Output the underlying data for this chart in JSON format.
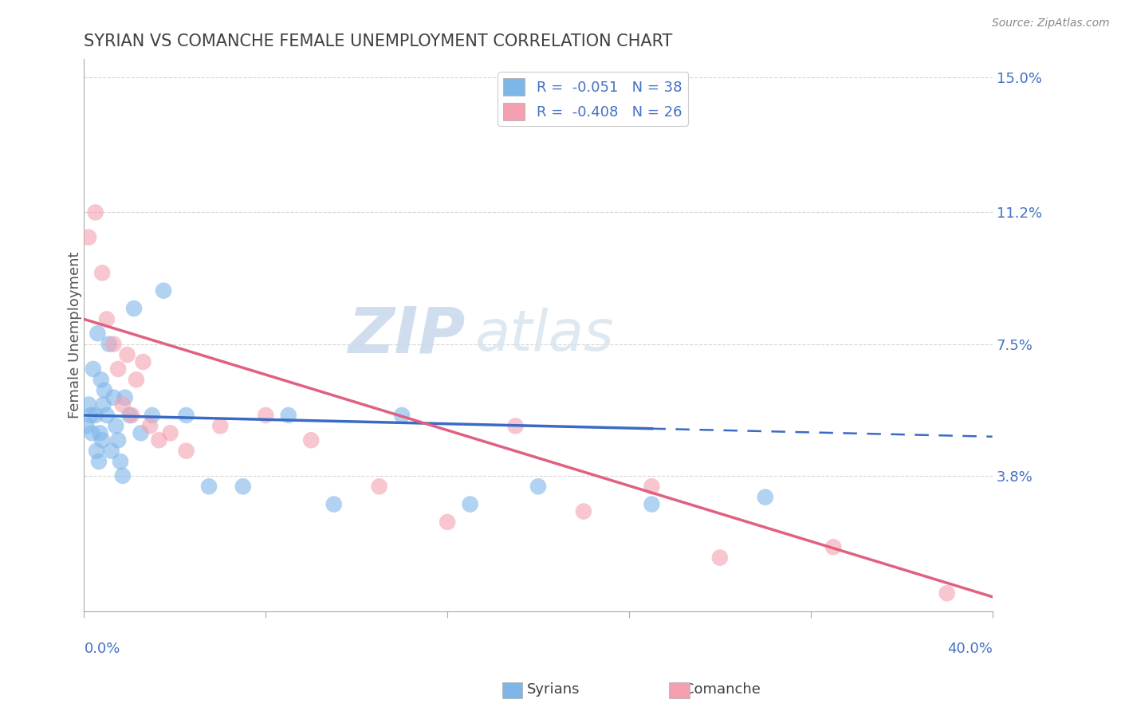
{
  "title": "SYRIAN VS COMANCHE FEMALE UNEMPLOYMENT CORRELATION CHART",
  "source": "Source: ZipAtlas.com",
  "ylabel": "Female Unemployment",
  "right_yticks": [
    3.8,
    7.5,
    11.2,
    15.0
  ],
  "right_ytick_labels": [
    "3.8%",
    "7.5%",
    "11.2%",
    "15.0%"
  ],
  "xlim": [
    0.0,
    40.0
  ],
  "ylim": [
    0.0,
    15.5
  ],
  "legend_label1": "R =  -0.051   N = 38",
  "legend_label2": "R =  -0.408   N = 26",
  "syrian_color": "#7EB6E8",
  "comanche_color": "#F4A0B0",
  "syrian_line_color": "#3A6BC4",
  "comanche_line_color": "#E06080",
  "background_color": "#FFFFFF",
  "grid_color": "#CCCCCC",
  "title_color": "#404040",
  "axis_label_color": "#4472C4",
  "watermark_color": "#D8E4F0",
  "syrians_x": [
    0.1,
    0.2,
    0.3,
    0.35,
    0.4,
    0.5,
    0.55,
    0.6,
    0.65,
    0.7,
    0.75,
    0.8,
    0.85,
    0.9,
    1.0,
    1.1,
    1.2,
    1.3,
    1.4,
    1.5,
    1.6,
    1.7,
    1.8,
    2.0,
    2.2,
    2.5,
    3.0,
    3.5,
    4.5,
    5.5,
    7.0,
    9.0,
    11.0,
    14.0,
    17.0,
    20.0,
    25.0,
    30.0
  ],
  "syrians_y": [
    5.2,
    5.8,
    5.5,
    5.0,
    6.8,
    5.5,
    4.5,
    7.8,
    4.2,
    5.0,
    6.5,
    4.8,
    5.8,
    6.2,
    5.5,
    7.5,
    4.5,
    6.0,
    5.2,
    4.8,
    4.2,
    3.8,
    6.0,
    5.5,
    8.5,
    5.0,
    5.5,
    9.0,
    5.5,
    3.5,
    3.5,
    5.5,
    3.0,
    5.5,
    3.0,
    3.5,
    3.0,
    3.2
  ],
  "comanche_x": [
    0.2,
    0.5,
    0.8,
    1.0,
    1.3,
    1.5,
    1.7,
    1.9,
    2.1,
    2.3,
    2.6,
    2.9,
    3.3,
    3.8,
    4.5,
    6.0,
    8.0,
    10.0,
    13.0,
    16.0,
    19.0,
    22.0,
    25.0,
    28.0,
    33.0,
    38.0
  ],
  "comanche_y": [
    10.5,
    11.2,
    9.5,
    8.2,
    7.5,
    6.8,
    5.8,
    7.2,
    5.5,
    6.5,
    7.0,
    5.2,
    4.8,
    5.0,
    4.5,
    5.2,
    5.5,
    4.8,
    3.5,
    2.5,
    5.2,
    2.8,
    3.5,
    1.5,
    1.8,
    0.5
  ],
  "syrian_trendline_x": [
    0.0,
    25.0
  ],
  "syrian_trendline_y_intercept": 5.5,
  "syrian_trendline_slope": -0.015,
  "comanche_trendline_x": [
    0.0,
    40.0
  ],
  "comanche_trendline_y_intercept": 8.2,
  "comanche_trendline_slope": -0.195
}
